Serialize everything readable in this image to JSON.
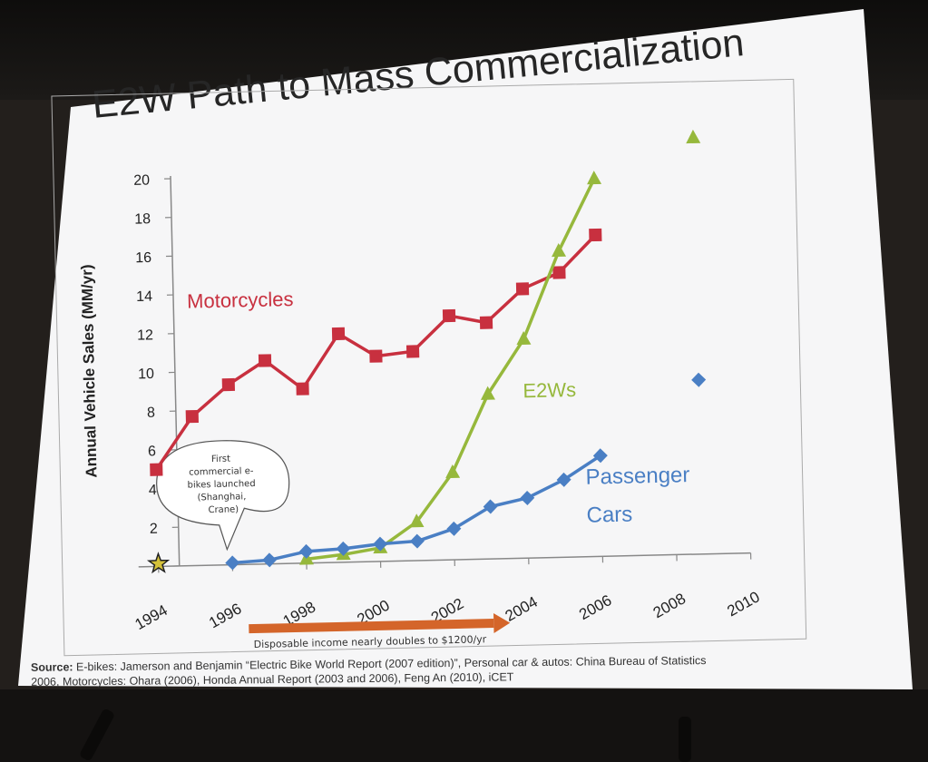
{
  "title": "E2W Path to Mass Commercialization",
  "source_label": "Source:",
  "source_line1": " E-bikes: Jamerson and Benjamin “Electric Bike World Report (2007 edition)”, Personal car & autos: China Bureau of Statistics",
  "source_line2": "2006, Motorcycles: Ohara (2006), Honda Annual Report (2003 and 2006), Feng An (2010), iCET",
  "chart_data": {
    "type": "line",
    "ylabel": "Annual Vehicle Sales (MM/yr)",
    "xlabel": "",
    "xlim": [
      1994,
      2010
    ],
    "ylim": [
      0,
      20
    ],
    "x_ticks": [
      "1994",
      "1996",
      "1998",
      "2000",
      "2002",
      "2004",
      "2006",
      "2008",
      "2010"
    ],
    "y_ticks": [
      "-",
      "2",
      "4",
      "6",
      "8",
      "10",
      "12",
      "14",
      "16",
      "18",
      "20"
    ],
    "series": [
      {
        "name": "Motorcycles",
        "color": "#c8303f",
        "marker": "square",
        "points": [
          [
            1994,
            5.0
          ],
          [
            1995,
            7.7
          ],
          [
            1996,
            9.3
          ],
          [
            1997,
            10.5
          ],
          [
            1998,
            9.0
          ],
          [
            1999,
            11.8
          ],
          [
            2000,
            10.6
          ],
          [
            2001,
            10.8
          ],
          [
            2002,
            12.6
          ],
          [
            2003,
            12.2
          ],
          [
            2004,
            13.9
          ],
          [
            2005,
            14.7
          ],
          [
            2006,
            16.6
          ]
        ]
      },
      {
        "name": "E2Ws",
        "color": "#96b83c",
        "marker": "triangle",
        "points": [
          [
            1998,
            0.2
          ],
          [
            1999,
            0.4
          ],
          [
            2000,
            0.7
          ],
          [
            2001,
            2.0
          ],
          [
            2002,
            4.5
          ],
          [
            2003,
            8.5
          ],
          [
            2004,
            11.3
          ],
          [
            2005,
            15.8
          ],
          [
            2006,
            19.5
          ]
        ],
        "extra_points": [
          [
            2008.7,
            21.5
          ]
        ]
      },
      {
        "name": "Passenger Cars",
        "name_line1": "Passenger",
        "name_line2": "Cars",
        "color": "#4a7fc4",
        "marker": "diamond",
        "points": [
          [
            1996,
            0.1
          ],
          [
            1997,
            0.2
          ],
          [
            1998,
            0.6
          ],
          [
            1999,
            0.7
          ],
          [
            2000,
            0.9
          ],
          [
            2001,
            1.0
          ],
          [
            2002,
            1.6
          ],
          [
            2003,
            2.7
          ],
          [
            2004,
            3.1
          ],
          [
            2005,
            4.0
          ],
          [
            2006,
            5.2
          ]
        ],
        "extra_points": [
          [
            2008.7,
            9.0
          ]
        ]
      }
    ],
    "annotations": {
      "callout_lines": [
        "First",
        "commercial e-",
        "bikes launched",
        "(Shanghai,",
        "Crane)"
      ],
      "arrow_text": "Disposable income nearly doubles to $1200/yr",
      "star_year": 1994
    }
  }
}
